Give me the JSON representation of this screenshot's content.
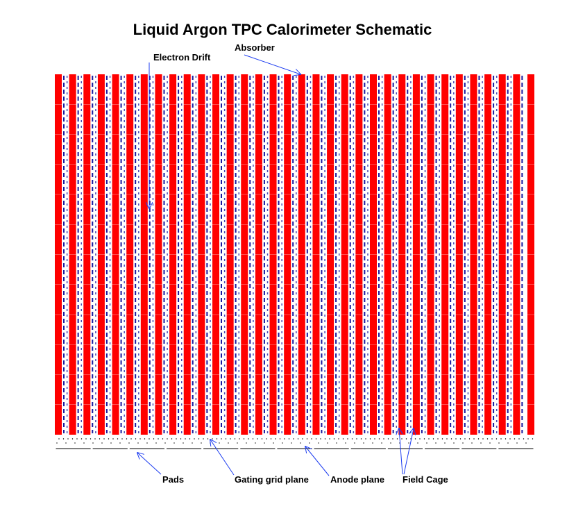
{
  "title": "Liquid Argon TPC Calorimeter Schematic",
  "labels": {
    "electron_drift": "Electron Drift",
    "absorber": "Absorber",
    "pads": "Pads",
    "gating_grid": "Gating grid plane",
    "anode": "Anode plane",
    "field_cage": "Field Cage"
  },
  "colors": {
    "absorber": "#ff0000",
    "field_cage_dash": "#1a1a9e",
    "arrow": "#1c3cf0",
    "ink": "#000000"
  },
  "structure": {
    "absorber_plate_count": 34,
    "pad_count": 13
  }
}
